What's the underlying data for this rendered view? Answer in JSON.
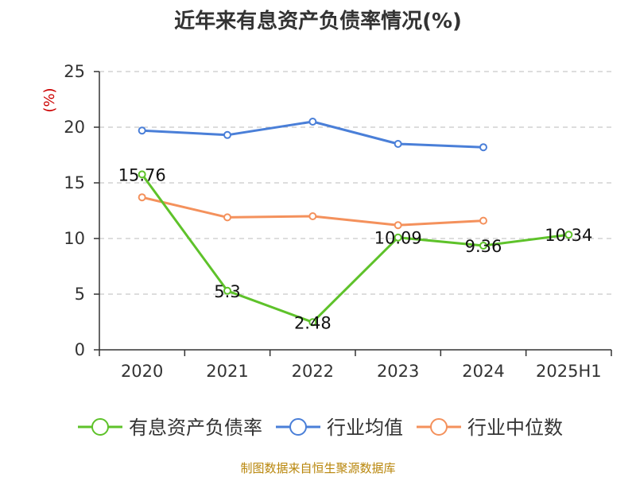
{
  "chart_data": {
    "type": "line",
    "title": "近年来有息资产负债率情况(%)",
    "ylabel": "(%)",
    "categories": [
      "2020",
      "2021",
      "2022",
      "2023",
      "2024",
      "2025H1"
    ],
    "ylim": [
      0,
      25
    ],
    "yticks": [
      0,
      5,
      10,
      15,
      20,
      25
    ],
    "grid": true,
    "legend_position": "bottom",
    "series": [
      {
        "name": "有息资产负债率",
        "color": "#5ec22a",
        "values": [
          15.76,
          5.3,
          2.48,
          10.09,
          9.36,
          10.34
        ],
        "labels": [
          "15.76",
          "5.3",
          "2.48",
          "10.09",
          "9.36",
          "10.34"
        ]
      },
      {
        "name": "行业均值",
        "color": "#4a7fd8",
        "values": [
          19.7,
          19.3,
          20.5,
          18.5,
          18.2,
          null
        ]
      },
      {
        "name": "行业中位数",
        "color": "#f4915c",
        "values": [
          13.7,
          11.9,
          12.0,
          11.2,
          11.6,
          null
        ]
      }
    ]
  },
  "source": "制图数据来自恒生聚源数据库"
}
